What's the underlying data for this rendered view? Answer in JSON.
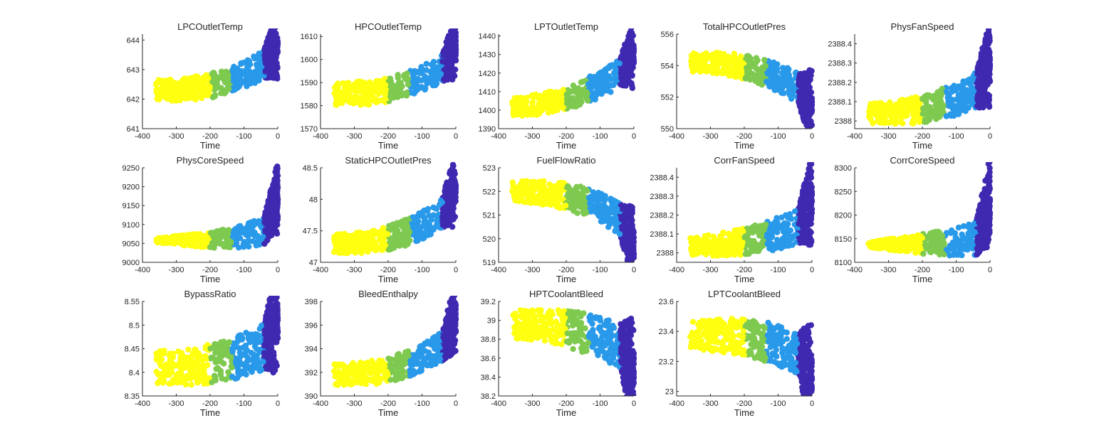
{
  "figure": {
    "background": "#ffffff",
    "cluster_colors": [
      "#ffff10",
      "#7ec94f",
      "#2999ea",
      "#3e29b0"
    ],
    "cluster_time_ranges": [
      [
        -360,
        -200
      ],
      [
        -200,
        -135
      ],
      [
        -135,
        -40
      ],
      [
        -40,
        0
      ]
    ]
  },
  "chart_data": [
    {
      "type": "scatter",
      "title": "LPCOutletTemp",
      "xlabel": "Time",
      "ylabel": "",
      "xlim": [
        -400,
        0
      ],
      "ylim": [
        641,
        644.2
      ],
      "xticks": [
        -400,
        -300,
        -200,
        -100,
        0
      ],
      "yticks": [
        641,
        642,
        643,
        644
      ],
      "xtick_labels": [
        "-400",
        "-300",
        "-200",
        "-100",
        "0"
      ],
      "ytick_labels": [
        "641",
        "642",
        "643",
        "644"
      ],
      "band": {
        "start_time": -360,
        "center_start": 642.3,
        "center_end": 643.5,
        "curve": 2.5,
        "spread_start": 0.35,
        "spread_end": 0.5,
        "tail_high": 644.1
      },
      "outliers": []
    },
    {
      "type": "scatter",
      "title": "HPCOutletTemp",
      "xlabel": "Time",
      "ylabel": "",
      "xlim": [
        -400,
        0
      ],
      "ylim": [
        1570,
        1611
      ],
      "xticks": [
        -400,
        -300,
        -200,
        -100,
        0
      ],
      "yticks": [
        1570,
        1580,
        1590,
        1600,
        1610
      ],
      "xtick_labels": [
        "-400",
        "-300",
        "-200",
        "-100",
        "0"
      ],
      "ytick_labels": [
        "1570",
        "1580",
        "1590",
        "1600",
        "1610"
      ],
      "band": {
        "start_time": -360,
        "center_start": 1585,
        "center_end": 1600,
        "curve": 2.5,
        "spread_start": 5,
        "spread_end": 6,
        "tail_high": 1610
      },
      "outliers": []
    },
    {
      "type": "scatter",
      "title": "LPTOutletTemp",
      "xlabel": "Time",
      "ylabel": "",
      "xlim": [
        -400,
        0
      ],
      "ylim": [
        1390,
        1441
      ],
      "xticks": [
        -400,
        -300,
        -200,
        -100,
        0
      ],
      "yticks": [
        1390,
        1400,
        1410,
        1420,
        1430,
        1440
      ],
      "xtick_labels": [
        "-400",
        "-300",
        "-200",
        "-100",
        "0"
      ],
      "ytick_labels": [
        "1390",
        "1400",
        "1410",
        "1420",
        "1430",
        "1440"
      ],
      "band": {
        "start_time": -360,
        "center_start": 1402,
        "center_end": 1425,
        "curve": 2.0,
        "spread_start": 5,
        "spread_end": 8,
        "tail_high": 1435
      },
      "outliers": []
    },
    {
      "type": "scatter",
      "title": "TotalHPCOutletPres",
      "xlabel": "Time",
      "ylabel": "",
      "xlim": [
        -400,
        0
      ],
      "ylim": [
        550,
        556
      ],
      "xticks": [
        -400,
        -300,
        -200,
        -100,
        0
      ],
      "yticks": [
        550,
        552,
        554,
        556
      ],
      "xtick_labels": [
        "-400",
        "-300",
        "-200",
        "-100",
        "0"
      ],
      "ytick_labels": [
        "550",
        "552",
        "554",
        "556"
      ],
      "band": {
        "start_time": -360,
        "center_start": 554.2,
        "center_end": 552.0,
        "curve": 2.5,
        "spread_start": 0.6,
        "spread_end": 1.0,
        "tail_high": 551.0
      },
      "outliers": []
    },
    {
      "type": "scatter",
      "title": "PhysFanSpeed",
      "xlabel": "Time",
      "ylabel": "",
      "xlim": [
        -400,
        0
      ],
      "ylim": [
        2387.96,
        2388.45
      ],
      "xticks": [
        -400,
        -300,
        -200,
        -100,
        0
      ],
      "yticks": [
        2388,
        2388.1,
        2388.2,
        2388.3,
        2388.4
      ],
      "xtick_labels": [
        "-400",
        "-300",
        "-200",
        "-100",
        "0"
      ],
      "ytick_labels": [
        "2388",
        "2388.1",
        "2388.2",
        "2388.3",
        "2388.4"
      ],
      "band": {
        "start_time": -360,
        "center_start": 2388.04,
        "center_end": 2388.2,
        "curve": 2.5,
        "spread_start": 0.05,
        "spread_end": 0.1,
        "tail_high": 2388.36
      },
      "outliers": [
        {
          "x": -2,
          "y": 2388.43
        }
      ]
    },
    {
      "type": "scatter",
      "title": "PhysCoreSpeed",
      "xlabel": "Time",
      "ylabel": "",
      "xlim": [
        -400,
        0
      ],
      "ylim": [
        9000,
        9250
      ],
      "xticks": [
        -400,
        -300,
        -200,
        -100,
        0
      ],
      "yticks": [
        9000,
        9050,
        9100,
        9150,
        9200,
        9250
      ],
      "xtick_labels": [
        "-400",
        "-300",
        "-200",
        "-100",
        "0"
      ],
      "ytick_labels": [
        "9000",
        "9050",
        "9100",
        "9150",
        "9200",
        "9250"
      ],
      "band": {
        "start_time": -360,
        "center_start": 9058,
        "center_end": 9100,
        "curve": 4.0,
        "spread_start": 6,
        "spread_end": 40,
        "tail_high": 9230
      },
      "outliers": []
    },
    {
      "type": "scatter",
      "title": "StaticHPCOutletPres",
      "xlabel": "Time",
      "ylabel": "",
      "xlim": [
        -400,
        0
      ],
      "ylim": [
        47,
        48.5
      ],
      "xticks": [
        -400,
        -300,
        -200,
        -100,
        0
      ],
      "yticks": [
        47,
        47.5,
        48,
        48.5
      ],
      "xtick_labels": [
        "-400",
        "-300",
        "-200",
        "-100",
        "0"
      ],
      "ytick_labels": [
        "47",
        "47.5",
        "48",
        "48.5"
      ],
      "band": {
        "start_time": -360,
        "center_start": 47.3,
        "center_end": 47.95,
        "curve": 2.5,
        "spread_start": 0.15,
        "spread_end": 0.25,
        "tail_high": 48.3
      },
      "outliers": []
    },
    {
      "type": "scatter",
      "title": "FuelFlowRatio",
      "xlabel": "Time",
      "ylabel": "",
      "xlim": [
        -400,
        0
      ],
      "ylim": [
        519,
        523
      ],
      "xticks": [
        -400,
        -300,
        -200,
        -100,
        0
      ],
      "yticks": [
        519,
        520,
        521,
        522,
        523
      ],
      "xtick_labels": [
        "-400",
        "-300",
        "-200",
        "-100",
        "0"
      ],
      "ytick_labels": [
        "519",
        "520",
        "521",
        "522",
        "523"
      ],
      "band": {
        "start_time": -360,
        "center_start": 522.0,
        "center_end": 520.4,
        "curve": 2.5,
        "spread_start": 0.45,
        "spread_end": 0.7,
        "tail_high": 519.2
      },
      "outliers": []
    },
    {
      "type": "scatter",
      "title": "CorrFanSpeed",
      "xlabel": "Time",
      "ylabel": "",
      "xlim": [
        -400,
        0
      ],
      "ylim": [
        2387.95,
        2388.45
      ],
      "xticks": [
        -400,
        -300,
        -200,
        -100,
        0
      ],
      "yticks": [
        2388,
        2388.1,
        2388.2,
        2388.3,
        2388.4
      ],
      "xtick_labels": [
        "-400",
        "-300",
        "-200",
        "-100",
        "0"
      ],
      "ytick_labels": [
        "2388",
        "2388.1",
        "2388.2",
        "2388.3",
        "2388.4"
      ],
      "band": {
        "start_time": -360,
        "center_start": 2388.04,
        "center_end": 2388.18,
        "curve": 2.5,
        "spread_start": 0.05,
        "spread_end": 0.1,
        "tail_high": 2388.35
      },
      "outliers": [
        {
          "x": -2,
          "y": 2388.43
        }
      ]
    },
    {
      "type": "scatter",
      "title": "CorrCoreSpeed",
      "xlabel": "Time",
      "ylabel": "",
      "xlim": [
        -400,
        0
      ],
      "ylim": [
        8100,
        8300
      ],
      "xticks": [
        -400,
        -300,
        -200,
        -100,
        0
      ],
      "yticks": [
        8100,
        8150,
        8200,
        8250,
        8300
      ],
      "xtick_labels": [
        "-400",
        "-300",
        "-200",
        "-100",
        "0"
      ],
      "ytick_labels": [
        "8100",
        "8150",
        "8200",
        "8250",
        "8300"
      ],
      "band": {
        "start_time": -360,
        "center_start": 8138,
        "center_end": 8160,
        "curve": 4.0,
        "spread_start": 6,
        "spread_end": 40,
        "tail_high": 8285
      },
      "outliers": []
    },
    {
      "type": "scatter",
      "title": "BypassRatio",
      "xlabel": "Time",
      "ylabel": "",
      "xlim": [
        -400,
        0
      ],
      "ylim": [
        8.35,
        8.55
      ],
      "xticks": [
        -400,
        -300,
        -200,
        -100,
        0
      ],
      "yticks": [
        8.35,
        8.4,
        8.45,
        8.5,
        8.55
      ],
      "xtick_labels": [
        "-400",
        "-300",
        "-200",
        "-100",
        "0"
      ],
      "ytick_labels": [
        "8.35",
        "8.4",
        "8.45",
        "8.5",
        "8.55"
      ],
      "band": {
        "start_time": -360,
        "center_start": 8.41,
        "center_end": 8.47,
        "curve": 2.5,
        "spread_start": 0.035,
        "spread_end": 0.05,
        "tail_high": 8.545
      },
      "outliers": []
    },
    {
      "type": "scatter",
      "title": "BleedEnthalpy",
      "xlabel": "Time",
      "ylabel": "",
      "xlim": [
        -400,
        0
      ],
      "ylim": [
        390,
        398
      ],
      "xticks": [
        -400,
        -300,
        -200,
        -100,
        0
      ],
      "yticks": [
        390,
        392,
        394,
        396,
        398
      ],
      "xtick_labels": [
        "-400",
        "-300",
        "-200",
        "-100",
        "0"
      ],
      "ytick_labels": [
        "390",
        "392",
        "394",
        "396",
        "398"
      ],
      "band": {
        "start_time": -360,
        "center_start": 391.8,
        "center_end": 395.0,
        "curve": 2.5,
        "spread_start": 0.9,
        "spread_end": 1.3,
        "tail_high": 398
      },
      "outliers": []
    },
    {
      "type": "scatter",
      "title": "HPTCoolantBleed",
      "xlabel": "Time",
      "ylabel": "",
      "xlim": [
        -400,
        0
      ],
      "ylim": [
        38.2,
        39.2
      ],
      "xticks": [
        -400,
        -300,
        -200,
        -100,
        0
      ],
      "yticks": [
        38.2,
        38.4,
        38.6,
        38.8,
        39,
        39.2
      ],
      "xtick_labels": [
        "-400",
        "-300",
        "-200",
        "-100",
        "0"
      ],
      "ytick_labels": [
        "38.2",
        "38.4",
        "38.6",
        "38.8",
        "39",
        "39.2"
      ],
      "band": {
        "start_time": -360,
        "center_start": 38.95,
        "center_end": 38.65,
        "curve": 2.5,
        "spread_start": 0.15,
        "spread_end": 0.25,
        "tail_high": 38.3
      },
      "outliers": []
    },
    {
      "type": "scatter",
      "title": "LPTCoolantBleed",
      "xlabel": "Time",
      "ylabel": "",
      "xlim": [
        -400,
        0
      ],
      "ylim": [
        22.97,
        23.6
      ],
      "xticks": [
        -400,
        -300,
        -200,
        -100,
        0
      ],
      "yticks": [
        23,
        23.2,
        23.4,
        23.6
      ],
      "xtick_labels": [
        "-400",
        "-300",
        "-200",
        "-100",
        "0"
      ],
      "ytick_labels": [
        "23",
        "23.2",
        "23.4",
        "23.6"
      ],
      "band": {
        "start_time": -360,
        "center_start": 23.38,
        "center_end": 23.22,
        "curve": 2.5,
        "spread_start": 0.1,
        "spread_end": 0.15,
        "tail_high": 23.0
      },
      "outliers": []
    }
  ]
}
